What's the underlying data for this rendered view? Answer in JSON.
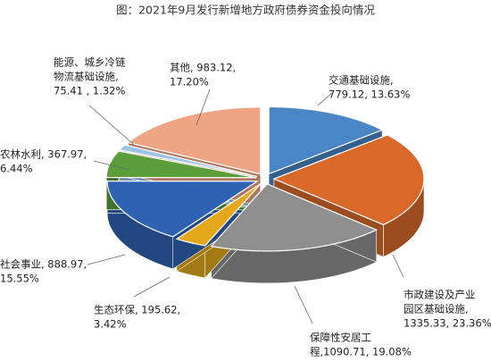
{
  "chart_data": {
    "type": "pie3d",
    "title": "图：2021年9月发行新增地方政府债券资金投向情况",
    "values": [
      779.12,
      1335.33,
      1090.71,
      195.62,
      888.97,
      367.97,
      75.41,
      983.12
    ],
    "value_labels": [
      [
        "交通基础设施,",
        "779.12, 13.63%"
      ],
      [
        "市政建设及产业",
        "园区基础设施,",
        "1335.33, 23.36%"
      ],
      [
        "保障性安居工",
        "程,1090.71, 19.08%"
      ],
      [
        "生态环保, 195.62,",
        "3.42%"
      ],
      [
        "社会事业, 888.97,",
        "15.55%"
      ],
      [
        "农林水利, 367.97,",
        "6.44%"
      ],
      [
        "能源、城乡冷链",
        "物流基础设施,",
        "75.41 , 1.32%"
      ],
      [
        "其他, 983.12,",
        "17.20%"
      ]
    ],
    "colors": [
      "#4a86c5",
      "#d8692a",
      "#8f8f8f",
      "#e3a81b",
      "#2f62b3",
      "#5b9e3b",
      "#9dc3e6",
      "#efa583"
    ]
  }
}
